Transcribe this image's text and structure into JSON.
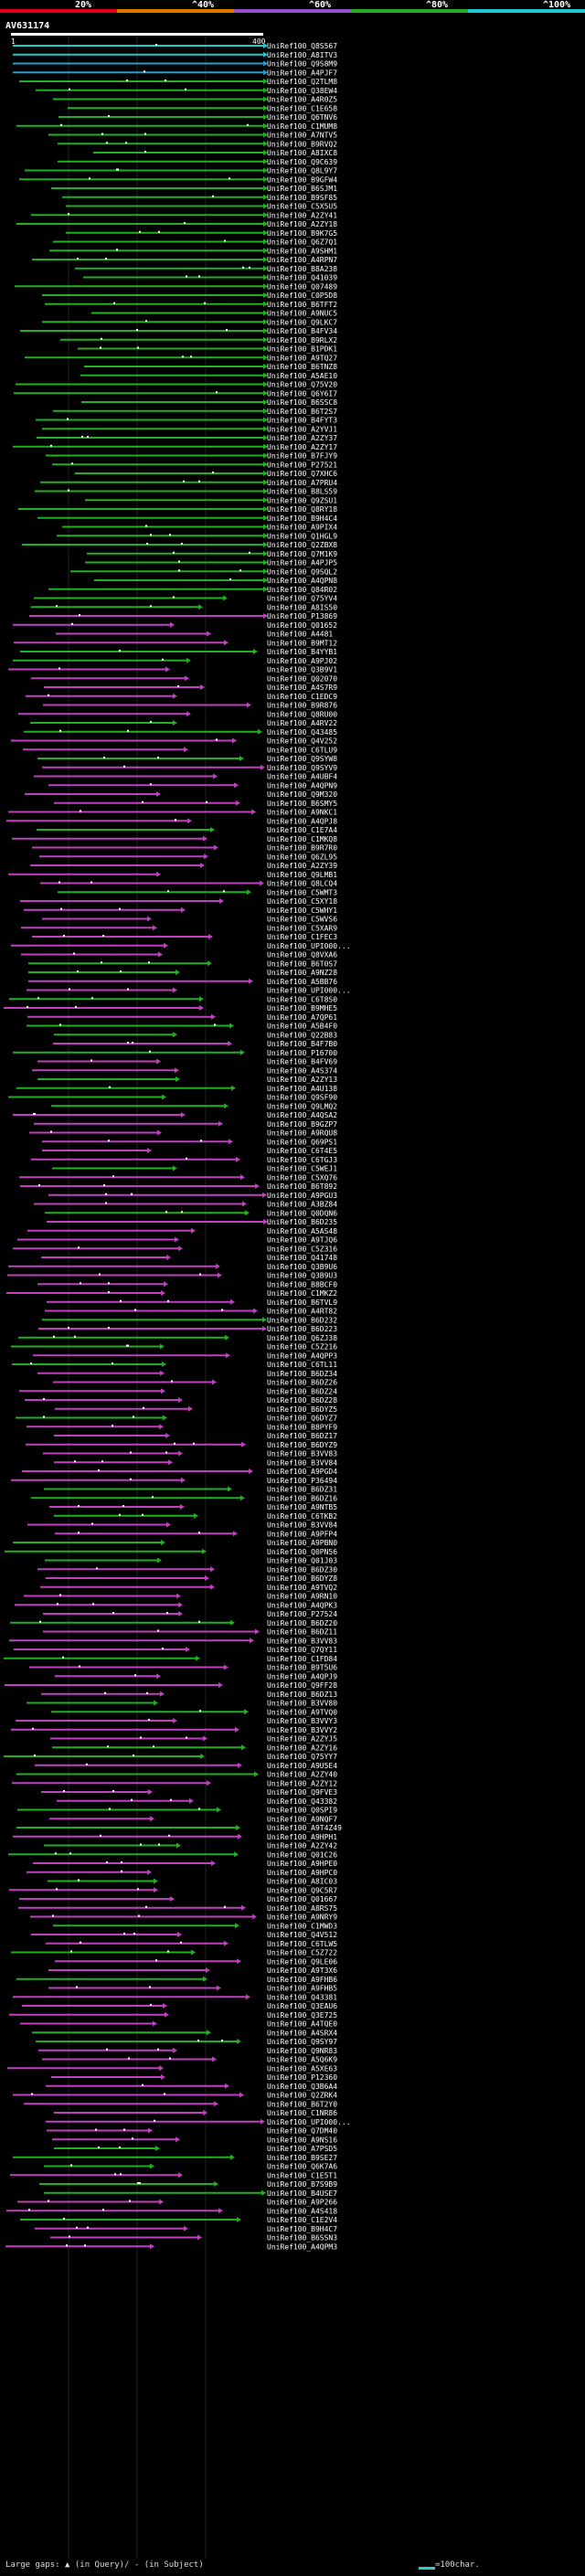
{
  "legend": {
    "labels": [
      "20%",
      "^40%",
      "^60%",
      "^80%",
      "^100%"
    ],
    "colors": [
      "#e0001c",
      "#e07800",
      "#9050d0",
      "#20b020",
      "#20c8d8"
    ]
  },
  "query": {
    "id": "AV631174",
    "start": "1",
    "end": "400"
  },
  "footer": {
    "text": "Large gaps: ▲ (in Query)/ - (in Subject)",
    "key": "=100char."
  },
  "hit_colors": {
    "cyan": "#20c8d8",
    "green": "#20b020",
    "purple": "#c040c0",
    "blue": "#20a0d0"
  },
  "hits": [
    "UniRef100_Q8S567",
    "UniRef100_A8ITV3",
    "UniRef100_Q9S8M9",
    "UniRef100_A4PJF7",
    "UniRef100_Q2TLM8",
    "UniRef100_Q38EW4",
    "UniRef100_A4R0Z5",
    "UniRef100_C1E658",
    "UniRef100_Q6TNV6",
    "UniRef100_C1MUM8",
    "UniRef100_A7NTV5",
    "UniRef100_B9RVQ2",
    "UniRef100_A8IXC8",
    "UniRef100_Q9C639",
    "UniRef100_Q8L9Y7",
    "UniRef100_B9GFW4",
    "UniRef100_B6SJM1",
    "UniRef100_B9SF85",
    "UniRef100_C5X5U5",
    "UniRef100_A2ZY41",
    "UniRef100_A2ZY18",
    "UniRef100_B9K7G5",
    "UniRef100_Q6Z7Q1",
    "UniRef100_A9SHM1",
    "UniRef100_A4RPN7",
    "UniRef100_B8A238",
    "UniRef100_Q41039",
    "UniRef100_Q07489",
    "UniRef100_C0P5D8",
    "UniRef100_B6TFT2",
    "UniRef100_A9NUC5",
    "UniRef100_Q9LKC7",
    "UniRef100_B4FV34",
    "UniRef100_B9RLX2",
    "UniRef100_B1PDK1",
    "UniRef100_A9TQ27",
    "UniRef100_B6TNZ8",
    "UniRef100_A5AE10",
    "UniRef100_Q75V20",
    "UniRef100_Q6Y6I7",
    "UniRef100_B6SSC8",
    "UniRef100_B6T2S7",
    "UniRef100_B4FYT3",
    "UniRef100_A2YVJ1",
    "UniRef100_A2ZY37",
    "UniRef100_A2ZY17",
    "UniRef100_B7FJY9",
    "UniRef100_P27521",
    "UniRef100_Q7XHC6",
    "UniRef100_A7PRU4",
    "UniRef100_B8LS59",
    "UniRef100_Q9ZSU1",
    "UniRef100_Q8RY18",
    "UniRef100_B9H4C4",
    "UniRef100_A9PIX4",
    "UniRef100_Q1HGL9",
    "UniRef100_Q2ZBX8",
    "UniRef100_Q7M1K9",
    "UniRef100_A4PJP5",
    "UniRef100_Q9SQL2",
    "UniRef100_A4QPN8",
    "UniRef100_Q84R02",
    "UniRef100_Q75YV4",
    "UniRef100_A8IS50",
    "UniRef100_P13869",
    "UniRef100_Q01652",
    "UniRef100_A4481",
    "UniRef100_B9MT12",
    "UniRef100_B4YYB1",
    "UniRef100_A9PJ02",
    "UniRef100_Q3B9V1",
    "UniRef100_Q02070",
    "UniRef100_A4S7R9",
    "UniRef100_C1EDC9",
    "UniRef100_B9R876",
    "UniRef100_Q8RU00",
    "UniRef100_A4RV22",
    "UniRef100_Q43485",
    "UniRef100_Q4V252",
    "UniRef100_C6TLU9",
    "UniRef100_Q9SYW8",
    "UniRef100_Q9SYV9",
    "UniRef100_A4UBF4",
    "UniRef100_A4QPN9",
    "UniRef100_Q9M320",
    "UniRef100_B6SMY5",
    "UniRef100_A9NKC1",
    "UniRef100_A4QPJ8",
    "UniRef100_C1E7A4",
    "UniRef100_C1MKQ8",
    "UniRef100_B9R7R0",
    "UniRef100_Q6ZL95",
    "UniRef100_A2ZY39",
    "UniRef100_Q9LMB1",
    "UniRef100_Q8LCQ4",
    "UniRef100_C5WMT3",
    "UniRef100_C5XY18",
    "UniRef100_C5WHY1",
    "UniRef100_C5WVS6",
    "UniRef100_C5XAR9",
    "UniRef100_C1FEC3",
    "UniRef100_UPI000...",
    "UniRef100_Q8VXA6",
    "UniRef100_B6T0S7",
    "UniRef100_A9NZ28",
    "UniRef100_A5BB76",
    "UniRef100_UPI000...",
    "UniRef100_C6T8S0",
    "UniRef100_B9MHE5",
    "UniRef100_A7QP61",
    "UniRef100_A5B4F0",
    "UniRef100_Q22B83",
    "UniRef100_B4F7B0",
    "UniRef100_P16700",
    "UniRef100_B4FV69",
    "UniRef100_A4S374",
    "UniRef100_A2ZY13",
    "UniRef100_A4U138",
    "UniRef100_Q9SF90",
    "UniRef100_Q9LMQ2",
    "UniRef100_A4QSA2",
    "UniRef100_B9GZP7",
    "UniRef100_A9RQU8",
    "UniRef100_Q69PS1",
    "UniRef100_C6T4E5",
    "UniRef100_C6TGJ3",
    "UniRef100_C5WEJ1",
    "UniRef100_C5XQ76",
    "UniRef100_B6T892",
    "UniRef100_A9PGU3",
    "UniRef100_A3BZ84",
    "UniRef100_Q0DQN6",
    "UniRef100_B6D235",
    "UniRef100_A5AS48",
    "UniRef100_A9TJQ6",
    "UniRef100_C5Z316",
    "UniRef100_Q41748",
    "UniRef100_Q3B9U6",
    "UniRef100_Q3B9U3",
    "UniRef100_B8BCF0",
    "UniRef100_C1MKZ2",
    "UniRef100_B6TVL9",
    "UniRef100_A4RT82",
    "UniRef100_B6D232",
    "UniRef100_B6D223",
    "UniRef100_Q6ZJ38",
    "UniRef100_C5Z216",
    "UniRef100_A4QPP3",
    "UniRef100_C6TL11",
    "UniRef100_B6DZ34",
    "UniRef100_B6DZ26",
    "UniRef100_B6DZ24",
    "UniRef100_B6DZ28",
    "UniRef100_B6DYZ5",
    "UniRef100_Q6DYZ7",
    "UniRef100_B8PYF9",
    "UniRef100_B6DZ17",
    "UniRef100_B6DYZ9",
    "UniRef100_B3VV83",
    "UniRef100_B3VV84",
    "UniRef100_A9PGD4",
    "UniRef100_P36494",
    "UniRef100_B6DZ31",
    "UniRef100_B6DZ16",
    "UniRef100_A9NTB5",
    "UniRef100_C6TKB2",
    "UniRef100_B3VV84",
    "UniRef100_A9PFP4",
    "UniRef100_A9PBN0",
    "UniRef100_Q0PN56",
    "UniRef100_Q01J03",
    "UniRef100_B6DZ30",
    "UniRef100_B6DYZ8",
    "UniRef100_A9TVQ2",
    "UniRef100_A9RN10",
    "UniRef100_A4QPK3",
    "UniRef100_P27524",
    "UniRef100_B6DZ20",
    "UniRef100_B6DZ11",
    "UniRef100_B3VV83",
    "UniRef100_Q7QY11",
    "UniRef100_C1FD84",
    "UniRef100_B9T5U6",
    "UniRef100_A4QPJ9",
    "UniRef100_Q9FF28",
    "UniRef100_B6DZ13",
    "UniRef100_B3VV80",
    "UniRef100_A9TVQ0",
    "UniRef100_B3VVY3",
    "UniRef100_B3VVY2",
    "UniRef100_A2ZYJ5",
    "UniRef100_A2ZY16",
    "UniRef100_Q75YY7",
    "UniRef100_A9U5E4",
    "UniRef100_A2ZY40",
    "UniRef100_A2ZY12",
    "UniRef100_Q9FVE3",
    "UniRef100_Q43382",
    "UniRef100_Q0SPI9",
    "UniRef100_A9NQF7",
    "UniRef100_A9T4Z49",
    "UniRef100_A9HPH1",
    "UniRef100_A2ZY42",
    "UniRef100_Q01C26",
    "UniRef100_A9HPE0",
    "UniRef100_A9HPC0",
    "UniRef100_A8IC03",
    "UniRef100_Q9C5R7",
    "UniRef100_Q01667",
    "UniRef100_A8RS75",
    "UniRef100_A9NRY9",
    "UniRef100_C1MWD3",
    "UniRef100_Q4V512",
    "UniRef100_C6TLW5",
    "UniRef100_C5Z722",
    "UniRef100_Q9LE06",
    "UniRef100_A9T3X6",
    "UniRef100_A9FHB6",
    "UniRef100_A9FHB5",
    "UniRef100_Q43381",
    "UniRef100_Q3EAU6",
    "UniRef100_Q3E725",
    "UniRef100_A4TQE0",
    "UniRef100_A4SRX4",
    "UniRef100_Q9SY97",
    "UniRef100_Q9NR83",
    "UniRef100_A5Q6K9",
    "UniRef100_A5XE63",
    "UniRef100_P12360",
    "UniRef100_Q3B6A4",
    "UniRef100_Q2ZRK4",
    "UniRef100_B6T2Y0",
    "UniRef100_C1NR86",
    "UniRef100_UPI000...",
    "UniRef100_Q7DM40",
    "UniRef100_A9NS16",
    "UniRef100_A7PSD5",
    "UniRef100_B9SE27",
    "UniRef100_Q6K7A6",
    "UniRef100_C1E5T1",
    "UniRef100_B7S9B9",
    "UniRef100_B4USE7",
    "UniRef100_A9P266",
    "UniRef100_A4S418",
    "UniRef100_C1E2V4",
    "UniRef100_B9H4C7",
    "UniRef100_B6SSN3",
    "UniRef100_A4QPM3"
  ]
}
